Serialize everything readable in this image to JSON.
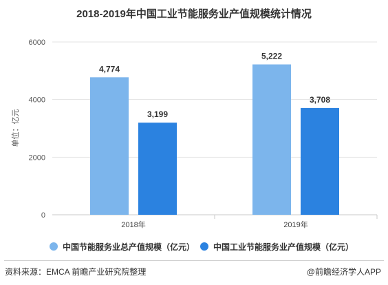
{
  "chart_data": {
    "type": "bar",
    "title": "2018-2019年中国工业节能服务业产值规模统计情况",
    "ylabel": "单位：亿元",
    "xlabel": "",
    "categories": [
      "2018年",
      "2019年"
    ],
    "series": [
      {
        "name": "中国节能服务业总产值规模（亿元）",
        "values": [
          4774,
          5222
        ],
        "color": "#7cb5ec"
      },
      {
        "name": "中国工业节能服务业产值规模（亿元）",
        "values": [
          3199,
          3708
        ],
        "color": "#2b82e0"
      }
    ],
    "data_labels": [
      [
        "4,774",
        "5,222"
      ],
      [
        "3,199",
        "3,708"
      ]
    ],
    "yticks": [
      "0",
      "2000",
      "4000",
      "6000"
    ],
    "ylim": [
      0,
      6000
    ],
    "grid": true,
    "legend_position": "bottom"
  },
  "footer": {
    "source": "资料来源：EMCA 前瞻产业研究院整理",
    "brand": "@前瞻经济学人APP"
  }
}
